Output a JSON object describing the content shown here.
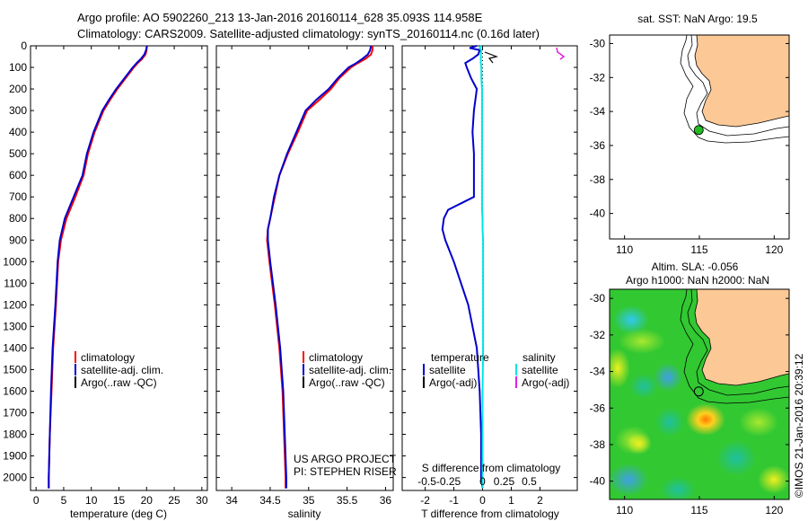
{
  "header": {
    "line1": "Argo profile: AO 5902260_213 13-Jan-2016 20160114_628 35.093S 114.958E",
    "line2": "Climatology: CARS2009. Satellite-adjusted climatology: synTS_20160114.nc (0.16d later)"
  },
  "watermark": "©IMOS 21-Jan-2016 20:39:12",
  "colors": {
    "climatology": "#ff0000",
    "satellite": "#0000cc",
    "argo": "#000000",
    "salinity_sat": "#00e5e5",
    "salinity_argo": "#e020e0",
    "land": "#fcc896",
    "argo_marker": "#22bb22"
  },
  "chart_data": [
    {
      "id": "temperature",
      "type": "line",
      "xlabel": "temperature (deg C)",
      "xlim": [
        -1,
        31
      ],
      "xticks": [
        0,
        5,
        10,
        15,
        20,
        25,
        30
      ],
      "ylim": [
        0,
        2060
      ],
      "yticks": [
        0,
        100,
        200,
        300,
        400,
        500,
        600,
        700,
        800,
        900,
        1000,
        1100,
        1200,
        1300,
        1400,
        1500,
        1600,
        1700,
        1800,
        1900,
        2000
      ],
      "legend": {
        "position": "center-right",
        "items": [
          "climatology",
          "satellite-adj. clim.",
          "Argo(..raw -QC)"
        ]
      },
      "depth": [
        0,
        20,
        40,
        60,
        80,
        100,
        150,
        200,
        250,
        300,
        400,
        500,
        600,
        700,
        800,
        900,
        1000,
        1200,
        1400,
        1600,
        1800,
        2000,
        2050
      ],
      "series": [
        {
          "name": "climatology",
          "values": [
            20.0,
            20.0,
            19.8,
            19.2,
            18.4,
            17.7,
            16.2,
            14.7,
            13.4,
            12.2,
            10.6,
            9.4,
            8.6,
            7.1,
            5.5,
            4.5,
            4.0,
            3.6,
            3.1,
            2.8,
            2.5,
            2.3,
            2.3
          ]
        },
        {
          "name": "satellite-adj. clim.",
          "values": [
            20.1,
            19.9,
            19.6,
            19.0,
            18.2,
            17.5,
            16.0,
            14.5,
            13.2,
            12.0,
            10.4,
            9.2,
            8.4,
            6.8,
            5.2,
            4.3,
            3.9,
            3.5,
            3.0,
            2.7,
            2.5,
            2.3,
            2.3
          ]
        }
      ]
    },
    {
      "id": "salinity",
      "type": "line",
      "xlabel": "salinity",
      "xlim": [
        33.8,
        36.1
      ],
      "xticks": [
        34,
        34.5,
        35,
        35.5,
        36
      ],
      "ylim": [
        0,
        2060
      ],
      "legend": {
        "position": "center-right",
        "items": [
          "climatology",
          "satellite-adj. clim.",
          "Argo(..raw -QC)"
        ]
      },
      "credit": [
        "US ARGO PROJECT",
        "PI: STEPHEN RISER"
      ],
      "depth": [
        0,
        20,
        40,
        60,
        80,
        100,
        150,
        200,
        250,
        300,
        400,
        500,
        600,
        700,
        800,
        850,
        900,
        1000,
        1200,
        1400,
        1600,
        1800,
        2000,
        2050
      ],
      "series": [
        {
          "name": "climatology",
          "values": [
            35.83,
            35.83,
            35.81,
            35.74,
            35.64,
            35.55,
            35.4,
            35.29,
            35.14,
            34.98,
            34.86,
            34.73,
            34.62,
            34.56,
            34.5,
            34.47,
            34.46,
            34.49,
            34.56,
            34.62,
            34.66,
            34.68,
            34.7,
            34.7
          ]
        },
        {
          "name": "satellite-adj. clim.",
          "values": [
            35.81,
            35.8,
            35.77,
            35.7,
            35.62,
            35.52,
            35.38,
            35.26,
            35.1,
            34.96,
            34.84,
            34.72,
            34.62,
            34.55,
            34.5,
            34.47,
            34.47,
            34.5,
            34.57,
            34.63,
            34.67,
            34.69,
            34.71,
            34.71
          ]
        }
      ]
    },
    {
      "id": "difference",
      "type": "line",
      "xlabel": "T difference from climatology",
      "xlabel2": "S difference from climatology",
      "xlim": [
        -2.8,
        3.3
      ],
      "xticks": [
        -2,
        -1,
        0,
        1,
        2
      ],
      "xticks2": [
        -0.5,
        -0.25,
        0,
        0.25,
        0.5
      ],
      "ylim": [
        0,
        2060
      ],
      "legend": {
        "position": "center",
        "temperature_header": "temperature",
        "salinity_header": "salinity",
        "items": [
          "satellite",
          "Argo(-adj)",
          "satellite",
          "Argo(-adj)"
        ]
      },
      "depth": [
        0,
        10,
        20,
        40,
        60,
        80,
        100,
        150,
        200,
        300,
        400,
        500,
        600,
        700,
        760,
        800,
        850,
        900,
        1000,
        1200,
        1400,
        1600,
        1800,
        2000,
        2050
      ],
      "series": [
        {
          "name": "temperature satellite",
          "values": [
            -0.2,
            -0.45,
            -0.1,
            -0.15,
            -0.35,
            -0.6,
            -0.55,
            -0.4,
            -0.2,
            -0.3,
            -0.35,
            -0.3,
            -0.3,
            -0.3,
            -1.2,
            -1.35,
            -1.4,
            -1.3,
            -1.0,
            -0.5,
            -0.2,
            -0.1,
            -0.05,
            -0.05,
            0.0
          ]
        },
        {
          "name": "salinity satellite",
          "values": [
            -0.02,
            -0.05,
            -0.02,
            -0.03,
            -0.03,
            -0.03,
            -0.02,
            -0.02,
            -0.01,
            -0.01,
            -0.01,
            -0.01,
            -0.01,
            -0.01,
            -0.01,
            0.0,
            0.0,
            0.01,
            0.01,
            0.01,
            0.01,
            0.0,
            0.0,
            0.0,
            0.0
          ]
        }
      ]
    },
    {
      "id": "sst_map",
      "type": "map",
      "title": "sat. SST: NaN Argo: 19.5",
      "xlim": [
        109,
        121
      ],
      "ylim": [
        -41.5,
        -29.5
      ],
      "xticks": [
        110,
        115,
        120
      ],
      "yticks": [
        -30,
        -32,
        -34,
        -36,
        -38,
        -40
      ],
      "argo_position": {
        "lon": 114.958,
        "lat": -35.093
      }
    },
    {
      "id": "sla_map",
      "type": "map",
      "title": "Altim. SLA: -0.056",
      "subtitle": "Argo h1000: NaN h2000: NaN",
      "xlim": [
        109,
        121
      ],
      "ylim": [
        -41,
        -29.5
      ],
      "xticks": [
        110,
        115,
        120
      ],
      "yticks": [
        -30,
        -32,
        -34,
        -36,
        -38,
        -40
      ],
      "argo_position": {
        "lon": 114.958,
        "lat": -35.093
      }
    }
  ]
}
